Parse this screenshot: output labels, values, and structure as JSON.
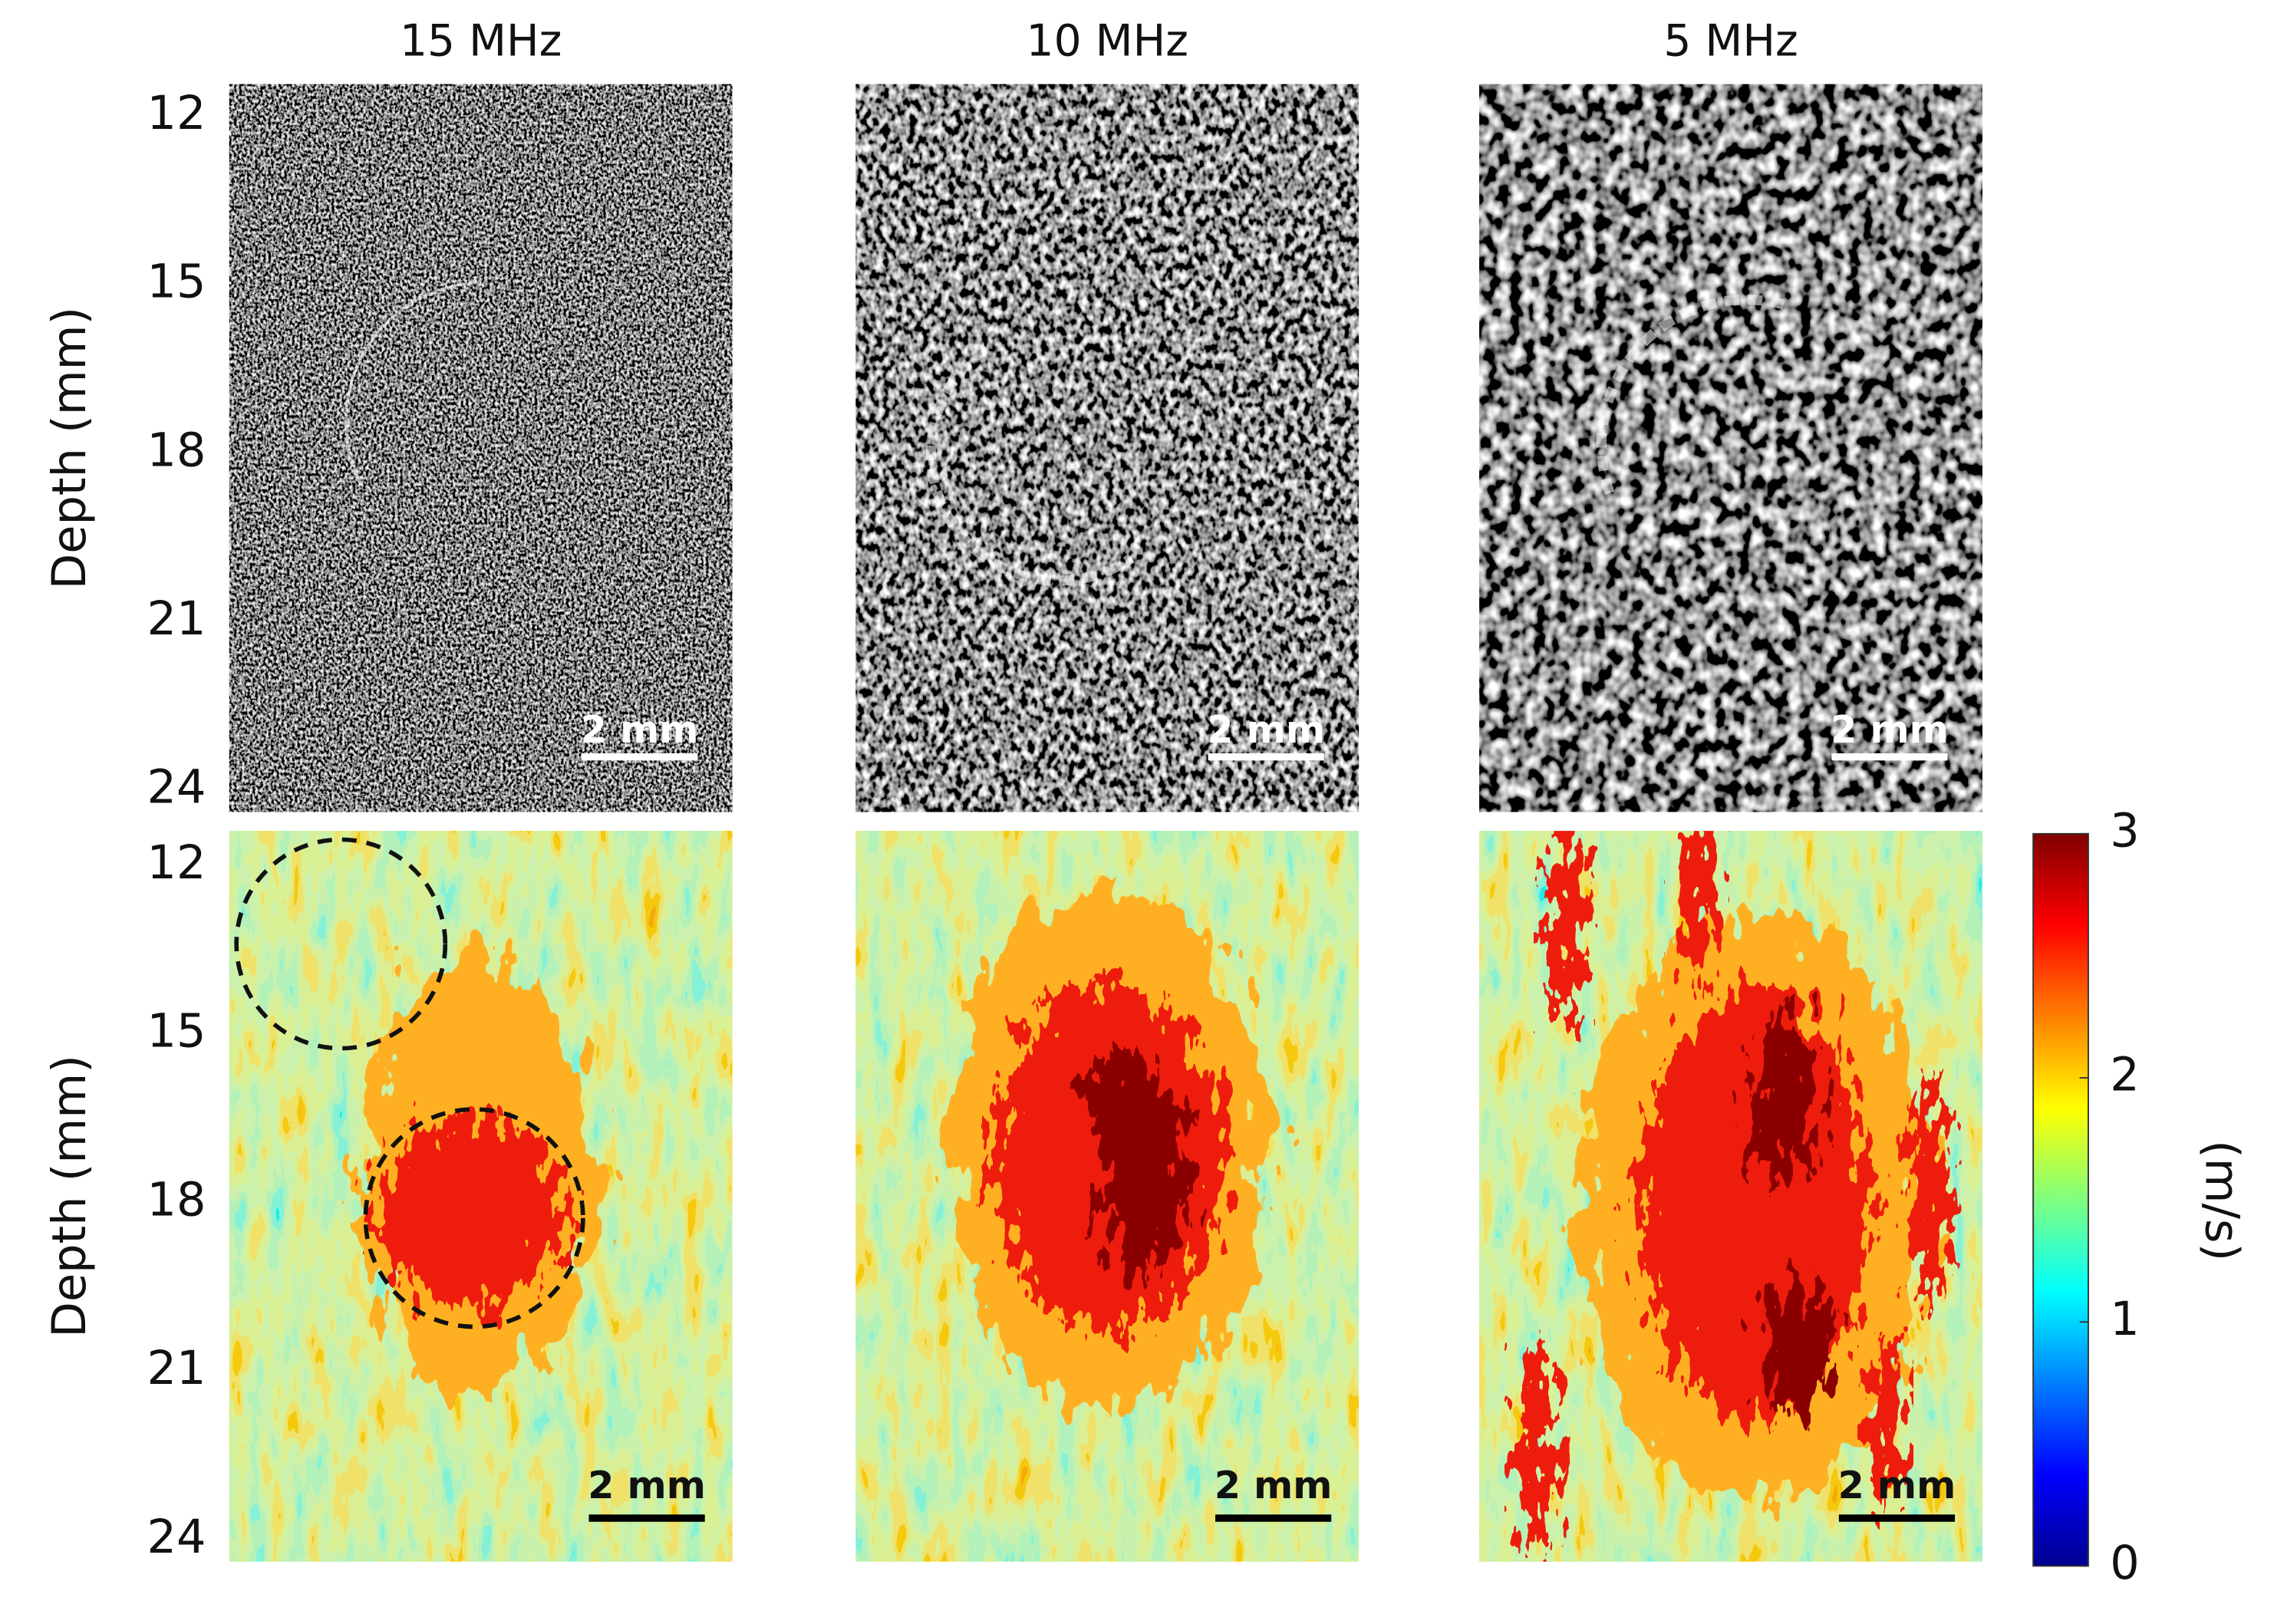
{
  "columns": [
    "15 MHz",
    "10 MHz",
    "5 MHz"
  ],
  "y_label": "Depth (mm)",
  "ylim": [
    12,
    24
  ],
  "yticks": [
    12,
    15,
    18,
    21,
    24
  ],
  "scale_bar": "2 mm",
  "colorbar": {
    "label": "(m/s)",
    "lim": [
      0,
      3
    ],
    "ticks": [
      0,
      1,
      2,
      3
    ],
    "colormap": "jet"
  }
}
